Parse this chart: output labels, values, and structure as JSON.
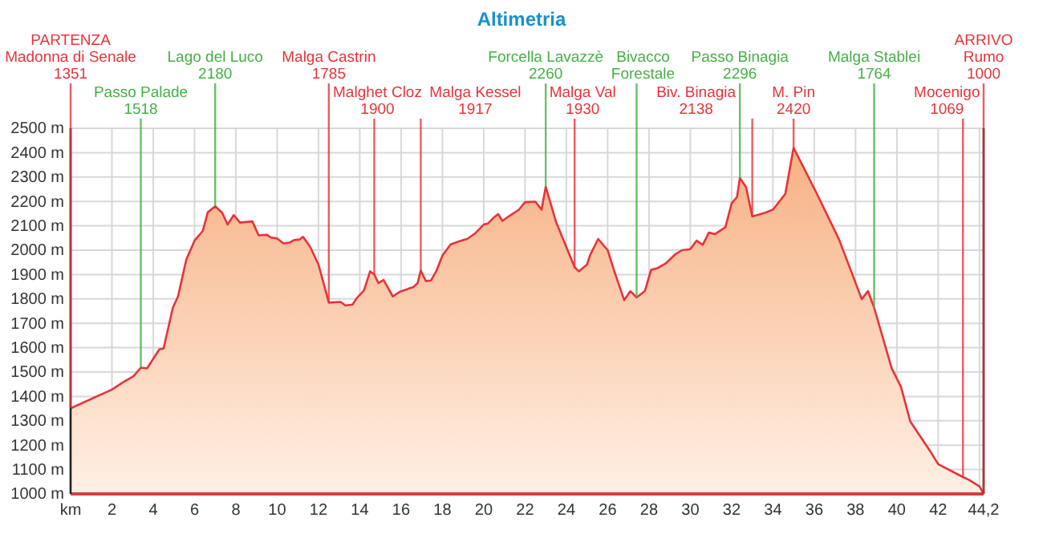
{
  "chart_data": {
    "type": "area",
    "title": "Altimetria",
    "x": [
      0,
      2.0,
      2.5,
      3.05,
      3.4,
      3.7,
      4.3,
      4.5,
      4.95,
      5.2,
      5.6,
      6.0,
      6.4,
      6.64,
      7.0,
      7.34,
      7.6,
      7.9,
      8.2,
      8.8,
      9.1,
      9.5,
      9.7,
      10.0,
      10.3,
      10.6,
      10.8,
      11.1,
      11.25,
      11.6,
      12.0,
      12.5,
      13.07,
      13.3,
      13.65,
      13.85,
      14.2,
      14.5,
      14.7,
      14.9,
      15.15,
      15.6,
      15.95,
      16.6,
      16.8,
      16.95,
      17.2,
      17.45,
      17.7,
      18.0,
      18.4,
      18.9,
      19.2,
      19.6,
      20.0,
      20.2,
      20.5,
      20.7,
      20.9,
      21.2,
      21.7,
      22.0,
      22.5,
      22.8,
      23.0,
      23.5,
      23.9,
      24.4,
      24.6,
      25.0,
      25.15,
      25.54,
      26.0,
      26.3,
      26.8,
      27.1,
      27.4,
      27.8,
      28.1,
      28.4,
      28.8,
      29.3,
      29.6,
      30.0,
      30.3,
      30.6,
      30.9,
      31.2,
      31.7,
      32.0,
      32.26,
      32.4,
      32.7,
      33.0,
      33.6,
      34.0,
      34.6,
      35.0,
      36.1,
      37.2,
      38.3,
      38.6,
      38.9,
      39.75,
      40.2,
      40.65,
      41.6,
      42.0,
      43.2,
      43.5,
      44.0,
      44.2
    ],
    "series": [
      {
        "color": "#e8333a",
        "values": [
          1351,
          1428,
          1456,
          1483,
          1518,
          1515,
          1594,
          1596,
          1764,
          1810,
          1961,
          2039,
          2079,
          2155,
          2180,
          2153,
          2105,
          2144,
          2113,
          2118,
          2061,
          2063,
          2052,
          2048,
          2028,
          2031,
          2041,
          2044,
          2055,
          2013,
          1941,
          1785,
          1788,
          1773,
          1777,
          1803,
          1834,
          1913,
          1900,
          1865,
          1878,
          1810,
          1830,
          1849,
          1865,
          1917,
          1873,
          1876,
          1913,
          1978,
          2024,
          2039,
          2046,
          2070,
          2105,
          2109,
          2135,
          2148,
          2120,
          2138,
          2166,
          2197,
          2199,
          2166,
          2260,
          2116,
          2033,
          1930,
          1913,
          1941,
          1980,
          2046,
          2000,
          1919,
          1795,
          1832,
          1806,
          1832,
          1919,
          1926,
          1945,
          1985,
          2000,
          2004,
          2039,
          2022,
          2072,
          2066,
          2094,
          2192,
          2218,
          2296,
          2258,
          2138,
          2153,
          2166,
          2231,
          2420,
          2236,
          2044,
          1799,
          1832,
          1764,
          1515,
          1439,
          1297,
          1177,
          1122,
          1069,
          1057,
          1031,
          1000
        ]
      }
    ],
    "xlim": [
      0,
      44.2
    ],
    "ylim": [
      1000,
      2500
    ],
    "xticks": [
      {
        "value": 0,
        "label": "km"
      },
      2,
      4,
      6,
      8,
      10,
      12,
      14,
      16,
      18,
      20,
      22,
      24,
      26,
      28,
      30,
      32,
      34,
      36,
      38,
      40,
      42,
      {
        "value": 44,
        "label": null
      },
      {
        "value": 44.2,
        "label": "44,2"
      }
    ],
    "yticks": [
      {
        "value": 1000,
        "label": "1000 m"
      },
      {
        "value": 1100,
        "label": "1100 m"
      },
      {
        "value": 1200,
        "label": "1200 m"
      },
      {
        "value": 1300,
        "label": "1300 m"
      },
      {
        "value": 1400,
        "label": "1400 m"
      },
      {
        "value": 1500,
        "label": "1500 m"
      },
      {
        "value": 1600,
        "label": "1600 m"
      },
      {
        "value": 1700,
        "label": "1700 m"
      },
      {
        "value": 1800,
        "label": "1800 m"
      },
      {
        "value": 1900,
        "label": "1900 m"
      },
      {
        "value": 2000,
        "label": "2000 m"
      },
      {
        "value": 2100,
        "label": "2100 m"
      },
      {
        "value": 2200,
        "label": "2200 m"
      },
      {
        "value": 2300,
        "label": "2300 m"
      },
      {
        "value": 2400,
        "label": "2400 m"
      },
      {
        "value": 2500,
        "label": "2500 m"
      }
    ],
    "grid": true,
    "ref_lines": [
      {
        "axis": "x",
        "value": 0,
        "label": "PARTENZA\nMadonna di Senale\n1351",
        "color": "#e8333a"
      },
      {
        "axis": "x",
        "value": 3.4,
        "label": "Passo Palade\n1518",
        "color": "#44b044"
      },
      {
        "axis": "x",
        "value": 7.0,
        "label": "Lago del Luco\n2180",
        "color": "#44b044"
      },
      {
        "axis": "x",
        "value": 12.5,
        "label": "Malga Castrin\n1785",
        "color": "#e8333a"
      },
      {
        "axis": "x",
        "value": 14.7,
        "label": "Malghet Cloz\n1900",
        "color": "#e8333a"
      },
      {
        "axis": "x",
        "value": 16.95,
        "label": "Malga Kessel\n1917",
        "color": "#e8333a"
      },
      {
        "axis": "x",
        "value": 23.0,
        "label": "Forcella Lavazzè\n2260",
        "color": "#44b044"
      },
      {
        "axis": "x",
        "value": 24.4,
        "label": "Malga Val\n1930",
        "color": "#e8333a"
      },
      {
        "axis": "x",
        "value": 27.4,
        "label": "Bivacco\nForestale",
        "color": "#44b044"
      },
      {
        "axis": "x",
        "value": 32.4,
        "label": "Passo Binagia\n2296",
        "color": "#44b044"
      },
      {
        "axis": "x",
        "value": 33.0,
        "label": "Biv. Binagia\n2138",
        "color": "#e8333a"
      },
      {
        "axis": "x",
        "value": 35.0,
        "label": "M. Pin\n2420",
        "color": "#e8333a"
      },
      {
        "axis": "x",
        "value": 38.9,
        "label": "Malga Stablei\n1764",
        "color": "#44b044"
      },
      {
        "axis": "x",
        "value": 43.2,
        "label": "Mocenigo\n1069",
        "color": "#e8333a"
      },
      {
        "axis": "x",
        "value": 44.2,
        "label": "ARRIVO\nRumo\n1000",
        "color": "#e8333a"
      }
    ]
  }
}
